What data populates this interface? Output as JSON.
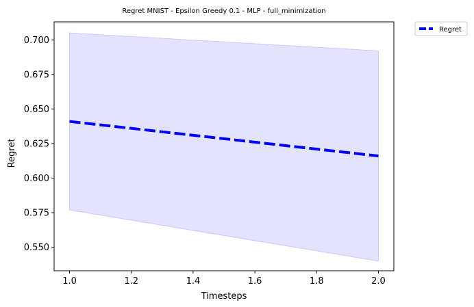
{
  "chart_data": {
    "type": "line",
    "title": "Regret MNIST - Epsilon Greedy 0.1 - MLP - full_minimization",
    "xlabel": "Timesteps",
    "ylabel": "Regret",
    "xlim": [
      0.95,
      2.05
    ],
    "ylim": [
      0.533,
      0.713
    ],
    "xticks": [
      1.0,
      1.2,
      1.4,
      1.6,
      1.8,
      2.0
    ],
    "xtick_labels": [
      "1.0",
      "1.2",
      "1.4",
      "1.6",
      "1.8",
      "2.0"
    ],
    "yticks": [
      0.55,
      0.575,
      0.6,
      0.625,
      0.65,
      0.675,
      0.7
    ],
    "ytick_labels": [
      "0.550",
      "0.575",
      "0.600",
      "0.625",
      "0.650",
      "0.675",
      "0.700"
    ],
    "grid": false,
    "legend_position": "outside-top-right",
    "series": [
      {
        "name": "Regret",
        "color": "#0000ff",
        "line_style": "dashed",
        "x": [
          1.0,
          2.0
        ],
        "y": [
          0.641,
          0.616
        ],
        "band_lower": [
          0.577,
          0.54
        ],
        "band_upper": [
          0.705,
          0.692
        ],
        "band_color": "#e3e3ff"
      }
    ]
  }
}
